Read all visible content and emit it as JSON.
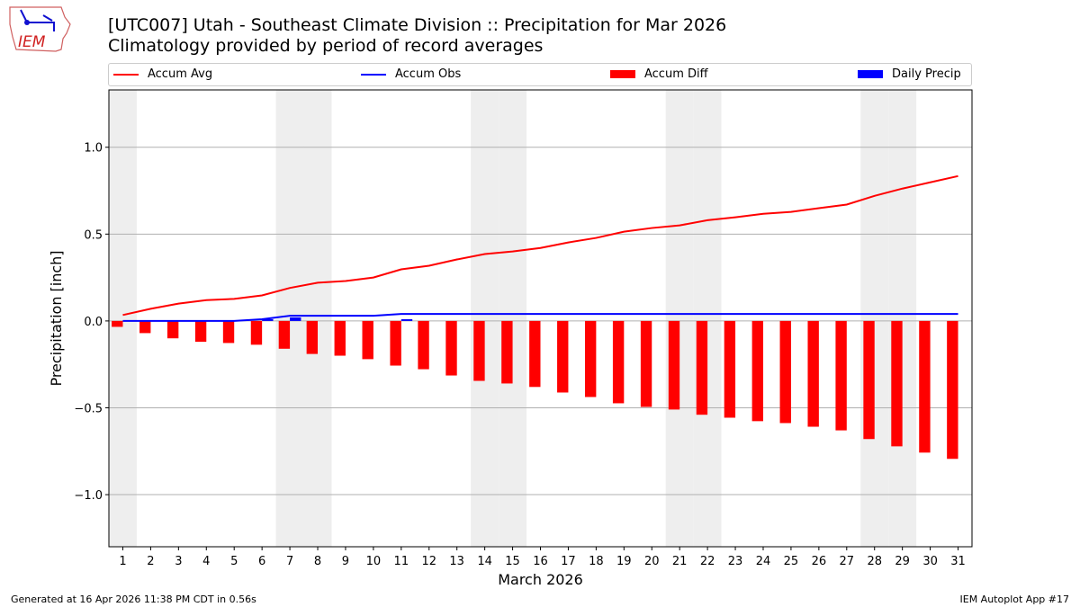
{
  "header": {
    "title": "[UTC007] Utah - Southeast Climate Division :: Precipitation for Mar 2026",
    "subtitle": "Climatology provided by period of record averages",
    "logo_text": "IEM"
  },
  "footer": {
    "generated": "Generated at 16 Apr 2026 11:38 PM CDT in 0.56s",
    "app": "IEM Autoplot App #17"
  },
  "colors": {
    "avg": "#ff0000",
    "obs": "#0000ff",
    "diff": "#ff0000",
    "daily": "#0000ff",
    "weekend": "#eeeeee"
  },
  "chart_data": {
    "type": "bar",
    "title": "[UTC007] Utah - Southeast Climate Division :: Precipitation for Mar 2026",
    "xlabel": "March 2026",
    "ylabel": "Precipitation [inch]",
    "ylim": [
      -1.3,
      1.33
    ],
    "xlim": [
      0.5,
      31.5
    ],
    "yticks": [
      -1.0,
      -0.5,
      0.0,
      0.5,
      1.0
    ],
    "ytick_labels": [
      "−1.0",
      "−0.5",
      "0.0",
      "0.5",
      "1.0"
    ],
    "grid": true,
    "legend_position": "top",
    "weekend_days": [
      1,
      7,
      8,
      14,
      15,
      21,
      22,
      28,
      29
    ],
    "x": [
      1,
      2,
      3,
      4,
      5,
      6,
      7,
      8,
      9,
      10,
      11,
      12,
      13,
      14,
      15,
      16,
      17,
      18,
      19,
      20,
      21,
      22,
      23,
      24,
      25,
      26,
      27,
      28,
      29,
      30,
      31
    ],
    "x_labels": [
      "1",
      "2",
      "3",
      "4",
      "5",
      "6",
      "7",
      "8",
      "9",
      "10",
      "11",
      "12",
      "13",
      "14",
      "15",
      "16",
      "17",
      "18",
      "19",
      "20",
      "21",
      "22",
      "23",
      "24",
      "25",
      "26",
      "27",
      "28",
      "29",
      "30",
      "31"
    ],
    "series": [
      {
        "name": "Accum Avg",
        "type": "line",
        "values": [
          0.034,
          0.07,
          0.1,
          0.12,
          0.127,
          0.147,
          0.19,
          0.22,
          0.23,
          0.25,
          0.297,
          0.318,
          0.354,
          0.385,
          0.4,
          0.42,
          0.452,
          0.478,
          0.514,
          0.535,
          0.55,
          0.58,
          0.597,
          0.617,
          0.628,
          0.649,
          0.67,
          0.72,
          0.762,
          0.798,
          0.834
        ]
      },
      {
        "name": "Accum Obs",
        "type": "line",
        "values": [
          0,
          0,
          0,
          0,
          0,
          0.01,
          0.03,
          0.03,
          0.03,
          0.03,
          0.04,
          0.04,
          0.04,
          0.04,
          0.04,
          0.04,
          0.04,
          0.04,
          0.04,
          0.04,
          0.04,
          0.04,
          0.04,
          0.04,
          0.04,
          0.04,
          0.04,
          0.04,
          0.04,
          0.04,
          0.04
        ]
      },
      {
        "name": "Accum Diff",
        "type": "bar",
        "values": [
          -0.034,
          -0.07,
          -0.1,
          -0.12,
          -0.127,
          -0.137,
          -0.16,
          -0.19,
          -0.2,
          -0.22,
          -0.257,
          -0.278,
          -0.314,
          -0.345,
          -0.36,
          -0.38,
          -0.412,
          -0.438,
          -0.474,
          -0.495,
          -0.51,
          -0.54,
          -0.557,
          -0.577,
          -0.588,
          -0.609,
          -0.63,
          -0.68,
          -0.722,
          -0.758,
          -0.794
        ]
      },
      {
        "name": "Daily Precip",
        "type": "bar",
        "values": [
          0,
          0,
          0,
          0,
          0,
          0.01,
          0.02,
          0,
          0,
          0,
          0.01,
          0,
          0,
          0,
          0,
          0,
          0,
          0,
          0,
          0,
          0,
          0,
          0,
          0,
          0,
          0,
          0,
          0,
          0,
          0,
          0
        ]
      }
    ]
  }
}
